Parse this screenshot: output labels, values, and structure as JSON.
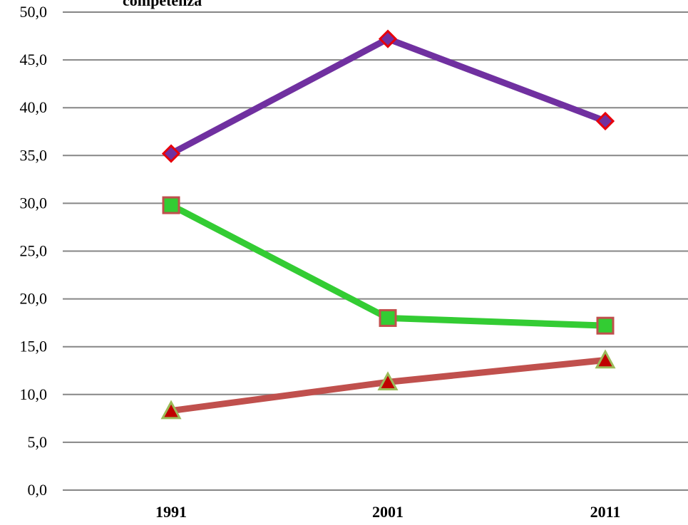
{
  "chart_data": {
    "type": "line",
    "title": "competenza",
    "categories": [
      "1991",
      "2001",
      "2011"
    ],
    "ylim": [
      0,
      50
    ],
    "yticks": [
      "0,0",
      "5,0",
      "10,0",
      "15,0",
      "20,0",
      "25,0",
      "30,0",
      "35,0",
      "40,0",
      "45,0",
      "50,0"
    ],
    "grid": true,
    "series": [
      {
        "values": [
          35.2,
          47.2,
          38.6
        ],
        "color": "#7030a0",
        "marker": "diamond",
        "marker_fill": "#7030a0",
        "marker_stroke": "#e8000b"
      },
      {
        "values": [
          29.8,
          18.0,
          17.2
        ],
        "color": "#33cc33",
        "marker": "square",
        "marker_fill": "#33cc33",
        "marker_stroke": "#c0504d"
      },
      {
        "values": [
          8.3,
          11.3,
          13.6
        ],
        "color": "#c0504d",
        "marker": "triangle",
        "marker_fill": "#c00000",
        "marker_stroke": "#9bbb59"
      }
    ]
  }
}
